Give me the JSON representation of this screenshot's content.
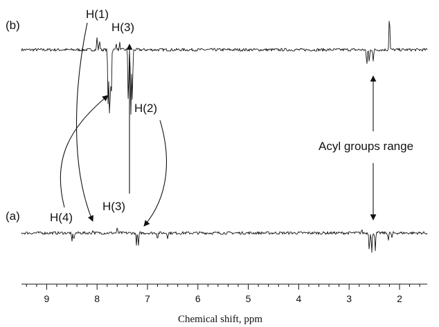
{
  "chart_data": {
    "type": "line",
    "title": "",
    "xlabel": "Chemical shift, ppm",
    "ylabel": "",
    "xlim": [
      9.5,
      1.45
    ],
    "x_reversed": true,
    "grid": false,
    "ticks": {
      "major": [
        "9",
        "8",
        "7",
        "6",
        "5",
        "4",
        "3",
        "2"
      ],
      "major_values": [
        9,
        8,
        7,
        6,
        5,
        4,
        3,
        2
      ],
      "minor_step": 0.2
    },
    "series": [
      {
        "panel": "(b)",
        "peaks": [
          {
            "x": 8.0,
            "h": 0.35
          },
          {
            "x": 7.95,
            "h": 0.25
          },
          {
            "x": 7.78,
            "h": -1.6
          },
          {
            "x": 7.75,
            "h": -2.1
          },
          {
            "x": 7.72,
            "h": -1.4
          },
          {
            "x": 7.62,
            "h": 0.2
          },
          {
            "x": 7.55,
            "h": 0.18
          },
          {
            "x": 7.38,
            "h": -1.5
          },
          {
            "x": 7.33,
            "h": -1.75
          },
          {
            "x": 7.3,
            "h": -1.4
          },
          {
            "x": 2.65,
            "h": -0.45
          },
          {
            "x": 2.6,
            "h": -0.35
          },
          {
            "x": 2.52,
            "h": -0.3
          },
          {
            "x": 2.2,
            "h": 1.0
          }
        ]
      },
      {
        "panel": "(a)",
        "peaks": [
          {
            "x": 8.5,
            "h": -0.25
          },
          {
            "x": 8.46,
            "h": -0.2
          },
          {
            "x": 8.08,
            "h": 0.08
          },
          {
            "x": 7.6,
            "h": 0.12
          },
          {
            "x": 7.22,
            "h": -0.3
          },
          {
            "x": 7.18,
            "h": -0.35
          },
          {
            "x": 6.8,
            "h": -0.15
          },
          {
            "x": 6.6,
            "h": -0.12
          },
          {
            "x": 2.75,
            "h": 0.08
          },
          {
            "x": 2.6,
            "h": -0.45
          },
          {
            "x": 2.55,
            "h": -0.55
          },
          {
            "x": 2.48,
            "h": -0.45
          },
          {
            "x": 2.22,
            "h": -0.2
          },
          {
            "x": 2.15,
            "h": -0.15
          }
        ]
      }
    ],
    "annotations": {
      "panel_b": "(b)",
      "panel_a": "(a)",
      "h1": "H(1)",
      "h3_b": "H(3)",
      "h2": "H(2)",
      "h4": "H(4)",
      "h3_a": "H(3)",
      "acyl": "Acyl groups range"
    }
  }
}
